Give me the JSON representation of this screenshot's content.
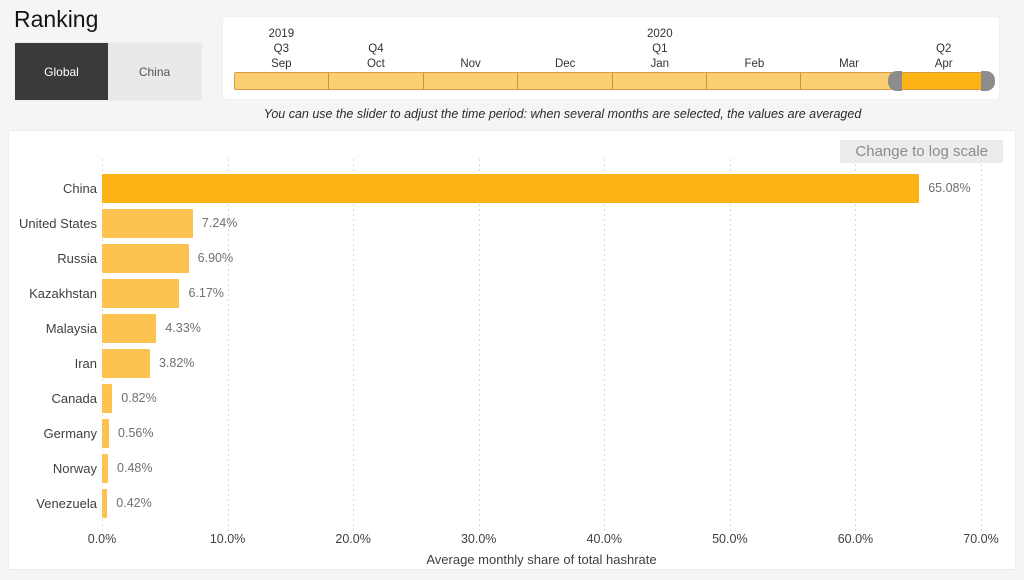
{
  "page": {
    "title": "Ranking"
  },
  "toggle": {
    "options": [
      {
        "label": "Global",
        "active": true
      },
      {
        "label": "China",
        "active": false
      }
    ]
  },
  "timeline": {
    "months": [
      {
        "label": "Sep",
        "quarter": "Q3",
        "year": "2019",
        "selected": false
      },
      {
        "label": "Oct",
        "quarter": "Q4",
        "year": "",
        "selected": false
      },
      {
        "label": "Nov",
        "quarter": "",
        "year": "",
        "selected": false
      },
      {
        "label": "Dec",
        "quarter": "",
        "year": "",
        "selected": false
      },
      {
        "label": "Jan",
        "quarter": "Q1",
        "year": "2020",
        "selected": false
      },
      {
        "label": "Feb",
        "quarter": "",
        "year": "",
        "selected": false
      },
      {
        "label": "Mar",
        "quarter": "",
        "year": "",
        "selected": false
      },
      {
        "label": "Apr",
        "quarter": "Q2",
        "year": "",
        "selected": true
      }
    ],
    "segment_color": "#fbce74",
    "selected_color": "#fcb316",
    "handle_color": "#8c8c8c"
  },
  "note": "You can use the slider to adjust the time period: when several months are selected, the values are averaged",
  "chart": {
    "log_button_label": "Change to log scale"
  },
  "chart_data": {
    "type": "bar",
    "orientation": "horizontal",
    "title": "",
    "categories": [
      "China",
      "United States",
      "Russia",
      "Kazakhstan",
      "Malaysia",
      "Iran",
      "Canada",
      "Germany",
      "Norway",
      "Venezuela"
    ],
    "values": [
      65.08,
      7.24,
      6.9,
      6.17,
      4.33,
      3.82,
      0.82,
      0.56,
      0.48,
      0.42
    ],
    "value_labels": [
      "65.08%",
      "7.24%",
      "6.90%",
      "6.17%",
      "4.33%",
      "3.82%",
      "0.82%",
      "0.56%",
      "0.48%",
      "0.42%"
    ],
    "xlabel": "Average monthly share of total hashrate",
    "ylabel": "",
    "xlim": [
      0,
      70
    ],
    "x_tick_values": [
      0,
      10,
      20,
      30,
      40,
      50,
      60,
      70
    ],
    "x_tick_labels": [
      "0.0%",
      "10.0%",
      "20.0%",
      "30.0%",
      "40.0%",
      "50.0%",
      "60.0%",
      "70.0%"
    ],
    "grid": "vertical-dotted",
    "legend": "none",
    "bar_color": "#fdc350",
    "highlight_color": "#fcb316",
    "highlight_index": 0
  }
}
